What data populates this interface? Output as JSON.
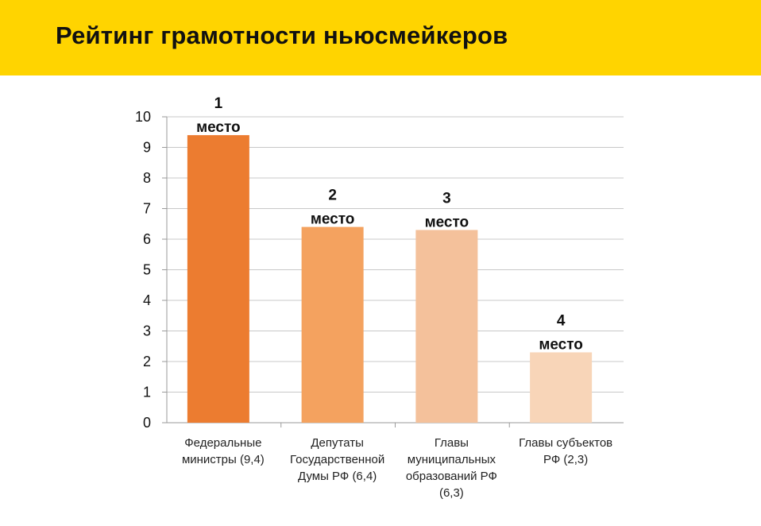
{
  "page": {
    "title": "Рейтинг грамотности ньюсмейкеров"
  },
  "colors": {
    "header_bg": "#ffd400",
    "grid": "#c8c8c8",
    "axis": "#9a9a9a"
  },
  "chart_data": {
    "type": "bar",
    "title": "",
    "xlabel": "",
    "ylabel": "",
    "ylim": [
      0,
      10
    ],
    "yticks": [
      0,
      1,
      2,
      3,
      4,
      5,
      6,
      7,
      8,
      9,
      10
    ],
    "grid": true,
    "legend": "none",
    "categories": [
      [
        "Федеральные",
        "министры (9,4)"
      ],
      [
        "Депутаты",
        "Государственной",
        "Думы РФ (6,4)"
      ],
      [
        "Главы",
        "муниципальных",
        "образований РФ",
        "(6,3)"
      ],
      [
        "Главы субъектов",
        "РФ (2,3)"
      ]
    ],
    "values": [
      9.4,
      6.4,
      6.3,
      2.3
    ],
    "data_labels": [
      [
        "1",
        "место"
      ],
      [
        "2",
        "место"
      ],
      [
        "3",
        "место"
      ],
      [
        "4",
        "место"
      ]
    ],
    "bar_colors": [
      "#ec7c30",
      "#f4a25f",
      "#f4c19b",
      "#f8d5b8"
    ]
  }
}
